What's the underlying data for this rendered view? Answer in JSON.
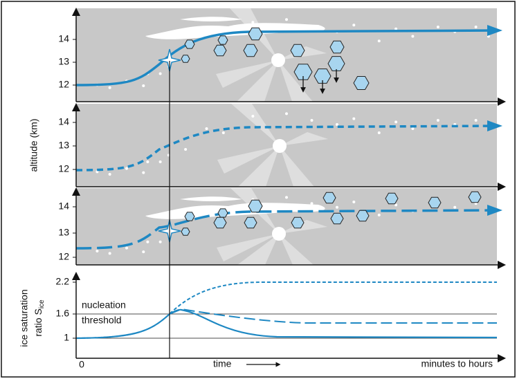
{
  "panels": [
    {
      "yticks": [
        "14",
        "13",
        "12"
      ]
    },
    {
      "yticks": [
        "14",
        "13",
        "12"
      ]
    },
    {
      "yticks": [
        "14",
        "13",
        "12"
      ]
    }
  ],
  "altitude_label": "altitude (km)",
  "bottom": {
    "ylabel_line1": "ice saturation",
    "ylabel_line2": "ratio S",
    "ylabel_sub": "ice",
    "yticks": [
      "2.2",
      "1.6",
      "1"
    ],
    "x_origin": "0",
    "threshold_lines": [
      "nucleation",
      "threshold"
    ],
    "xlabel": "time",
    "xlabel_right": "minutes to hours"
  }
}
